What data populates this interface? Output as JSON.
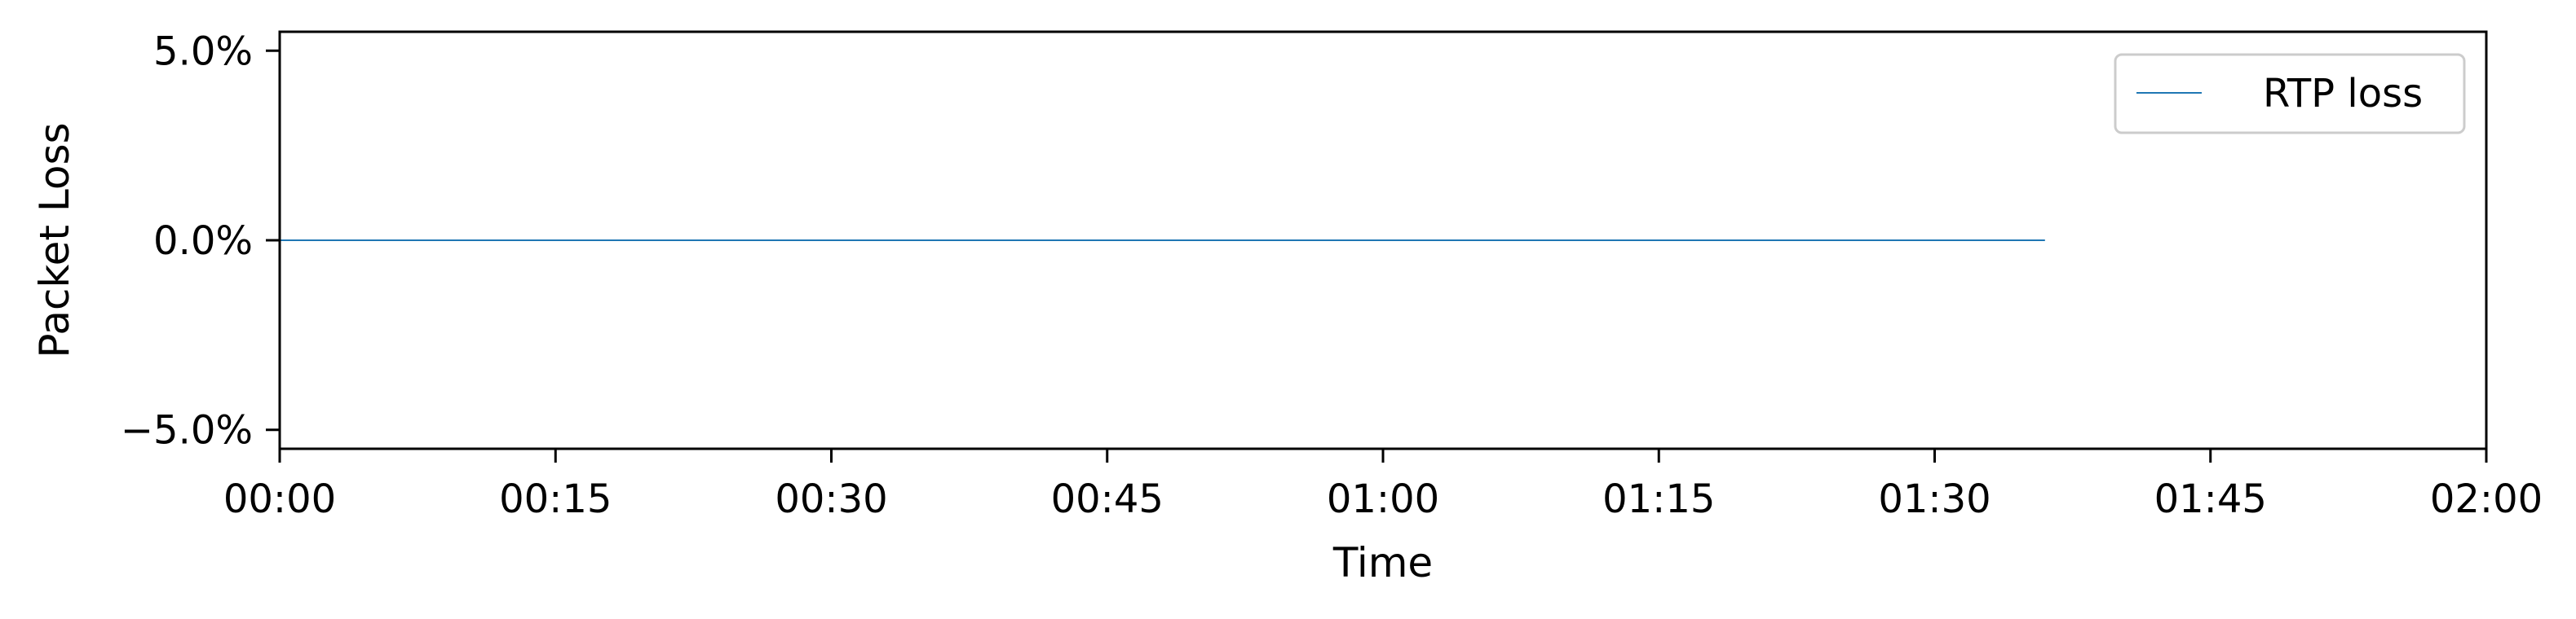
{
  "chart_data": {
    "type": "line",
    "title": "",
    "xlabel": "Time",
    "ylabel": "Packet Loss",
    "x_ticks": [
      "00:00",
      "00:15",
      "00:30",
      "00:45",
      "01:00",
      "01:15",
      "01:30",
      "01:45",
      "02:00"
    ],
    "y_ticks": [
      "−5.0%",
      "0.0%",
      "5.0%"
    ],
    "y_tick_values": [
      -5.0,
      0.0,
      5.0
    ],
    "xlim_minutes": [
      0,
      120
    ],
    "ylim": [
      -5.5,
      5.5
    ],
    "grid": false,
    "legend_position": "top-right",
    "series": [
      {
        "name": "RTP loss",
        "color": "#1f77b4",
        "x": [
          "00:00",
          "01:36"
        ],
        "y": [
          0.0,
          0.0
        ]
      }
    ]
  }
}
